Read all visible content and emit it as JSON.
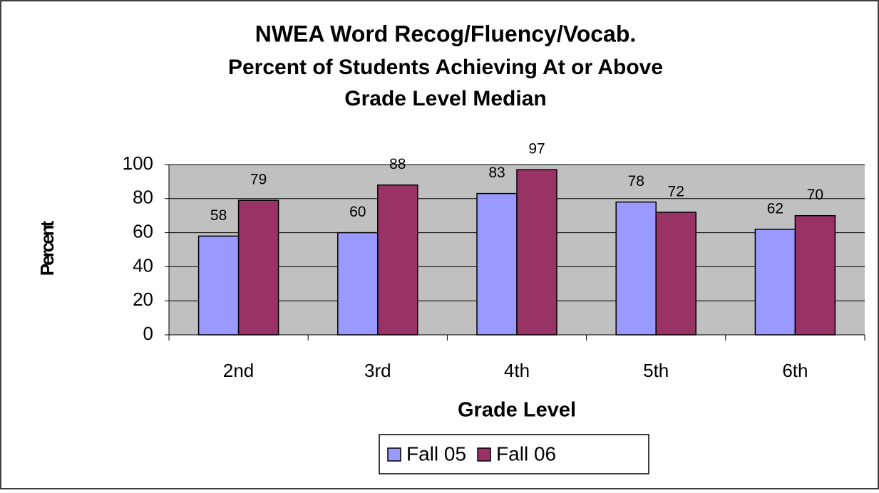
{
  "chart_data": {
    "type": "bar",
    "title": [
      "NWEA Word Recog/Fluency/Vocab.",
      "Percent of Students Achieving At or Above",
      "Grade Level Median"
    ],
    "x_label": "Grade Level",
    "y_label": "Percent",
    "categories": [
      "2nd",
      "3rd",
      "4th",
      "5th",
      "6th"
    ],
    "series": [
      {
        "name": "Fall 05",
        "color": "#9999ff",
        "values": [
          58,
          60,
          83,
          78,
          62
        ]
      },
      {
        "name": "Fall 06",
        "color": "#993366",
        "values": [
          79,
          88,
          97,
          72,
          70
        ]
      }
    ],
    "ylim": [
      0,
      100
    ],
    "yticks": [
      0,
      20,
      40,
      60,
      80,
      100
    ],
    "grid": true,
    "legend": "bottom"
  }
}
